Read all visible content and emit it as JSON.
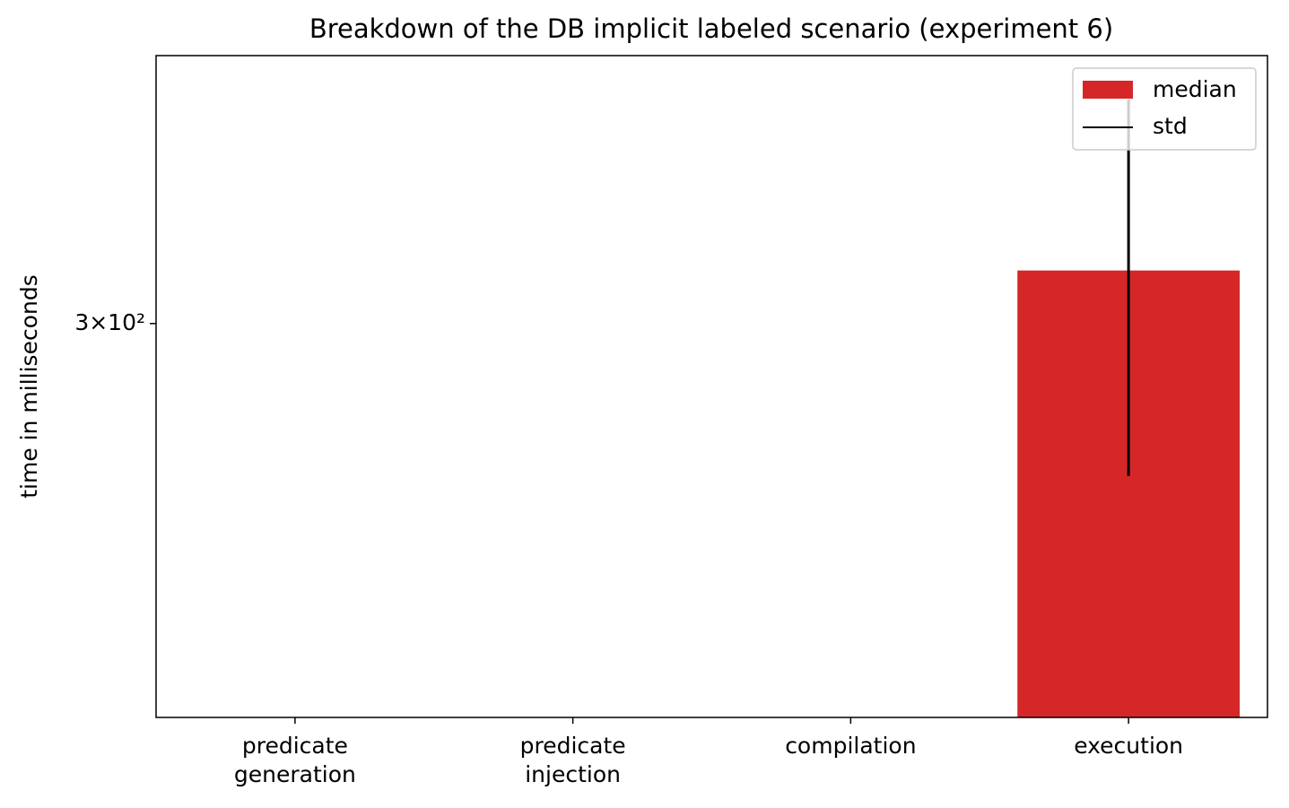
{
  "chart_data": {
    "type": "bar",
    "title": "Breakdown of the DB implicit labeled scenario (experiment 6)",
    "y_label": "time in milliseconds",
    "categories": [
      "predicate\ngeneration",
      "predicate\ninjection",
      "compilation",
      "execution"
    ],
    "series": [
      {
        "name": "median",
        "color": "#d62728",
        "values": [
          null,
          null,
          null,
          316
        ]
      },
      {
        "name": "std",
        "color": "#000000",
        "errors": [
          null,
          null,
          null,
          57.6
        ]
      }
    ],
    "ylim": [
      204,
      390
    ],
    "log_scale": true,
    "yticks": [
      {
        "value": 300,
        "label": "3×10²"
      }
    ],
    "grid": false,
    "legend": "upper right"
  }
}
